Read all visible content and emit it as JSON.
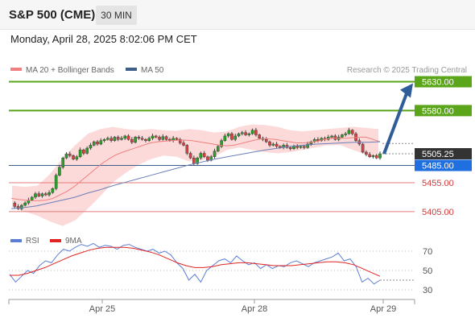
{
  "header": {
    "title": "S&P 500 (CME)",
    "interval": "30 MIN",
    "datetime": "Monday, April 28, 2025 8:02:06 PM CET"
  },
  "colors": {
    "green_level": "#5aa51a",
    "red_level": "#e37b7b",
    "current_line": "#3e5f8a",
    "arrow": "#2f5d99",
    "up_candle": "#2aa02a",
    "down_candle": "#d94040",
    "bollinger_fill": "#fbd3d3",
    "ma20": "#f08080",
    "ma50": "#6b7fb8",
    "rsi": "#5b7fd6",
    "rsi_ma": "#e02424"
  },
  "chart_data": [
    {
      "type": "candlestick",
      "title": "",
      "legend": [
        {
          "name": "MA 20 + Bollinger Bands",
          "color": "#f08080"
        },
        {
          "name": "MA 50",
          "color": "#3e5f8a"
        }
      ],
      "credit": "Research © 2025 Trading Central",
      "x_ticks": [
        "Apr 25",
        "Apr 28",
        "Apr 29"
      ],
      "y_range": [
        5370,
        5660
      ],
      "levels": [
        {
          "value": 5630.0,
          "label": "5630.00",
          "kind": "resistance"
        },
        {
          "value": 5580.0,
          "label": "5580.00",
          "kind": "resistance"
        },
        {
          "value": 5505.25,
          "label": "5505.25",
          "kind": "last_price"
        },
        {
          "value": 5485.0,
          "label": "5485.00",
          "kind": "pivot"
        },
        {
          "value": 5455.0,
          "label": "5455.00",
          "kind": "support"
        },
        {
          "value": 5405.0,
          "label": "5405.00",
          "kind": "support"
        }
      ],
      "arrow": {
        "from": 5505.25,
        "to": 5630.0,
        "direction": "up"
      },
      "close_series": [
        5420,
        5414,
        5410,
        5416,
        5420,
        5425,
        5430,
        5436,
        5432,
        5436,
        5434,
        5438,
        5445,
        5468,
        5482,
        5498,
        5505,
        5502,
        5496,
        5500,
        5512,
        5506,
        5515,
        5520,
        5526,
        5522,
        5528,
        5530,
        5532,
        5528,
        5534,
        5530,
        5532,
        5536,
        5530,
        5525,
        5534,
        5532,
        5530,
        5528,
        5532,
        5536,
        5534,
        5530,
        5535,
        5530,
        5528,
        5532,
        5530,
        5524,
        5520,
        5506,
        5498,
        5488,
        5498,
        5506,
        5500,
        5494,
        5500,
        5510,
        5518,
        5528,
        5536,
        5540,
        5530,
        5536,
        5540,
        5542,
        5538,
        5540,
        5546,
        5538,
        5532,
        5530,
        5526,
        5520,
        5522,
        5518,
        5516,
        5520,
        5516,
        5514,
        5518,
        5516,
        5518,
        5516,
        5522,
        5526,
        5530,
        5528,
        5532,
        5530,
        5534,
        5536,
        5530,
        5534,
        5538,
        5540,
        5546,
        5540,
        5528,
        5522,
        5508,
        5504,
        5500,
        5502,
        5498,
        5505.25
      ],
      "ma20_series": [
        5428,
        5426,
        5425,
        5424,
        5424,
        5425,
        5428,
        5434,
        5440,
        5448,
        5458,
        5468,
        5478,
        5488,
        5496,
        5503,
        5508,
        5512,
        5516,
        5520,
        5524,
        5526,
        5527,
        5528,
        5529,
        5529,
        5528,
        5526,
        5524,
        5522,
        5520,
        5519,
        5520,
        5523,
        5526,
        5529,
        5531,
        5531,
        5530,
        5528,
        5526,
        5524,
        5524,
        5525,
        5527,
        5530,
        5532,
        5532,
        5532,
        5533,
        5534,
        5534,
        5530,
        5526
      ],
      "ma50_series": [
        5410,
        5412,
        5415,
        5420,
        5425,
        5430,
        5437,
        5443,
        5450,
        5456,
        5462,
        5468,
        5474,
        5480,
        5486,
        5491,
        5496,
        5500,
        5504,
        5508,
        5512,
        5515,
        5518,
        5520,
        5522,
        5523,
        5524,
        5525,
        5525,
        5526
      ],
      "bb_upper": [
        5450,
        5448,
        5450,
        5470,
        5498,
        5520,
        5540,
        5548,
        5552,
        5548,
        5546,
        5548,
        5546,
        5545,
        5548,
        5546,
        5542,
        5544,
        5552,
        5556,
        5555,
        5552,
        5546,
        5544,
        5546,
        5548,
        5550,
        5552,
        5550,
        5548
      ],
      "bb_lower": [
        5412,
        5405,
        5398,
        5388,
        5380,
        5390,
        5410,
        5432,
        5456,
        5472,
        5486,
        5496,
        5502,
        5500,
        5492,
        5494,
        5500,
        5512,
        5516,
        5512,
        5508,
        5506,
        5508,
        5512,
        5516,
        5520,
        5520,
        5512,
        5504,
        5500
      ]
    },
    {
      "type": "line",
      "title": "",
      "legend": [
        {
          "name": "RSI",
          "color": "#5b7fd6"
        },
        {
          "name": "9MA",
          "color": "#e02424"
        }
      ],
      "y_ticks": [
        70,
        50,
        30
      ],
      "y_range": [
        20,
        80
      ],
      "rsi_series": [
        46,
        38,
        44,
        50,
        47,
        55,
        60,
        58,
        66,
        72,
        70,
        74,
        77,
        75,
        78,
        74,
        76,
        75,
        72,
        76,
        77,
        74,
        72,
        70,
        72,
        68,
        70,
        66,
        58,
        52,
        40,
        46,
        38,
        50,
        55,
        60,
        62,
        58,
        65,
        60,
        56,
        58,
        52,
        56,
        52,
        55,
        54,
        58,
        60,
        57,
        54,
        58,
        60,
        62,
        64,
        68,
        60,
        62,
        54,
        38,
        42,
        36,
        40
      ],
      "rsi_ma_series": [
        45,
        45,
        47,
        50,
        53,
        57,
        61,
        65,
        68,
        71,
        73,
        74,
        74,
        74,
        73,
        71,
        69,
        66,
        62,
        58,
        55,
        53,
        53,
        54,
        56,
        57,
        58,
        58,
        57,
        56,
        55,
        55,
        55,
        56,
        57,
        58,
        59,
        59,
        58,
        56,
        52,
        48,
        44
      ]
    }
  ]
}
